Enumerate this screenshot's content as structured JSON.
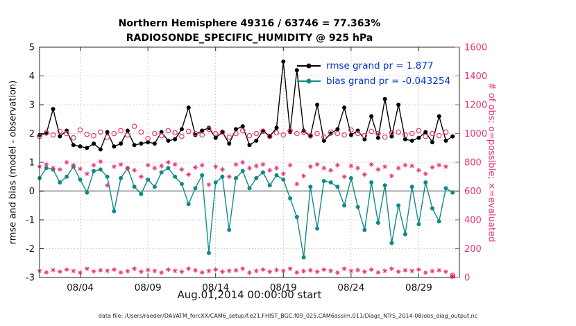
{
  "header": {
    "title_line1": "Northern Hemisphere 49316 / 63746 = 77.363%",
    "title_line2": "RADIOSONDE_SPECIFIC_HUMIDITY @ 925 hPa"
  },
  "axes": {
    "left_label": "rmse and bias (model - observation)",
    "right_label": "# of obs: o=possible; ×=evaluated",
    "x_label": "Aug.01,2014 00:00:00 start",
    "left_ticks": [
      5,
      4,
      3,
      2,
      1,
      0,
      -1,
      -2,
      -3
    ],
    "right_ticks": [
      1600,
      1400,
      1200,
      1000,
      800,
      600,
      400,
      200,
      0
    ],
    "x_ticks": [
      {
        "day": 4,
        "label": "08/04"
      },
      {
        "day": 9,
        "label": "08/09"
      },
      {
        "day": 14,
        "label": "08/14"
      },
      {
        "day": 19,
        "label": "08/19"
      },
      {
        "day": 24,
        "label": "08/24"
      },
      {
        "day": 29,
        "label": "08/29"
      }
    ]
  },
  "legend": {
    "items": [
      {
        "label": "rmse grand pr = 1.877",
        "color": "#000000"
      },
      {
        "label": "bias grand pr = -0.043254",
        "color": "#0f8a8a"
      }
    ],
    "text_color": "#0033cc"
  },
  "footer": {
    "caption": "data file: /Users/raeder/DAI/ATM_forcXX/CAM6_setup/f.e21.FHIST_BGC.f09_025.CAM6assim.011/Diags_NTrS_2014-08/obs_diag_output.nc"
  },
  "colors": {
    "pink": "#e83373",
    "teal": "#0f8a8a",
    "legend_blue": "#0033cc",
    "grid": "#b0b0b0",
    "zero_line": "#c9c9c9",
    "axis_box": "#262626"
  },
  "chart_data": {
    "type": "line",
    "title": "Northern Hemisphere 49316 / 63746 = 77.363% — RADIOSONDE_SPECIFIC_HUMIDITY @ 925 hPa",
    "xlabel": "Aug.01,2014 00:00:00 start",
    "ylabel_left": "rmse and bias (model - observation)",
    "ylabel_right": "# of obs: o=possible; ×=evaluated",
    "xlim": [
      1,
      32
    ],
    "left_ylim": [
      -3,
      5
    ],
    "right_ylim": [
      0,
      1600
    ],
    "grid": true,
    "rmse_grand_pr": 1.877,
    "bias_grand_pr": -0.043254,
    "x_days": [
      1,
      1.5,
      2,
      2.5,
      3,
      3.5,
      4,
      4.5,
      5,
      5.5,
      6,
      6.5,
      7,
      7.5,
      8,
      8.5,
      9,
      9.5,
      10,
      10.5,
      11,
      11.5,
      12,
      12.5,
      13,
      13.5,
      14,
      14.5,
      15,
      15.5,
      16,
      16.5,
      17,
      17.5,
      18,
      18.5,
      19,
      19.5,
      20,
      20.5,
      21,
      21.5,
      22,
      22.5,
      23,
      23.5,
      24,
      24.5,
      25,
      25.5,
      26,
      26.5,
      27,
      27.5,
      28,
      28.5,
      29,
      29.5,
      30,
      30.5,
      31,
      31.5
    ],
    "series": [
      {
        "name": "rmse",
        "axis": "left",
        "marker": "filled-circle",
        "line": true,
        "color": "#000000",
        "values": [
          1.95,
          2.0,
          2.85,
          1.9,
          2.1,
          1.6,
          1.55,
          1.5,
          1.65,
          1.45,
          2.05,
          1.55,
          1.65,
          2.1,
          1.6,
          1.65,
          1.7,
          1.65,
          2.05,
          1.75,
          1.8,
          2.15,
          2.9,
          1.95,
          2.1,
          2.2,
          1.85,
          2.05,
          1.65,
          2.15,
          2.25,
          1.6,
          1.75,
          2.1,
          1.9,
          2.2,
          4.5,
          2.05,
          4.2,
          2.1,
          1.9,
          3.0,
          1.75,
          2.0,
          2.15,
          2.9,
          1.95,
          2.1,
          1.8,
          2.6,
          1.85,
          3.2,
          1.9,
          3.0,
          1.8,
          1.75,
          1.85,
          2.05,
          1.7,
          2.6,
          1.75,
          1.9
        ]
      },
      {
        "name": "bias",
        "axis": "left",
        "marker": "filled-circle",
        "line": true,
        "color": "#0f8a8a",
        "values": [
          0.45,
          0.8,
          0.75,
          0.3,
          0.5,
          0.85,
          0.4,
          -0.05,
          0.7,
          0.75,
          0.5,
          -0.7,
          0.45,
          0.8,
          0.15,
          -0.1,
          0.4,
          0.15,
          0.65,
          0.8,
          0.5,
          0.25,
          -0.45,
          0.1,
          0.55,
          -2.15,
          0.3,
          0.5,
          -1.35,
          0.45,
          0.7,
          0.1,
          0.45,
          0.65,
          0.2,
          0.55,
          0.4,
          -0.25,
          -0.9,
          -2.3,
          0.15,
          -1.3,
          0.35,
          0.3,
          0.15,
          -0.5,
          0.45,
          -0.55,
          -1.35,
          0.3,
          -1.1,
          0.2,
          -1.8,
          -0.5,
          -1.5,
          0.15,
          -1.15,
          0.3,
          -0.6,
          -1.05,
          0.1,
          -0.05
        ]
      },
      {
        "name": "possible_obs",
        "axis": "right",
        "marker": "open-circle",
        "line": false,
        "color": "#e83373",
        "values": [
          980,
          1005,
          990,
          1015,
          1000,
          970,
          1025,
          995,
          985,
          1010,
          975,
          1000,
          1020,
          990,
          1050,
          1010,
          965,
          1000,
          985,
          1020,
          1005,
          980,
          1015,
          1000,
          990,
          1030,
          1000,
          1010,
          975,
          1000,
          1020,
          985,
          1000,
          1015,
          980,
          1005,
          990,
          1020,
          1000,
          1010,
          985,
          1000,
          975,
          1010,
          1000,
          990,
          1025,
          1000,
          985,
          1015,
          1000,
          975,
          1005,
          1010,
          990,
          1000,
          1020,
          980,
          1000,
          985,
          1010,
          15
        ]
      },
      {
        "name": "evaluated_obs",
        "axis": "right",
        "marker": "asterisk",
        "line": false,
        "color": "#e83373",
        "values": [
          770,
          785,
          760,
          750,
          800,
          780,
          755,
          720,
          780,
          805,
          640,
          770,
          785,
          755,
          745,
          700,
          780,
          760,
          775,
          800,
          785,
          750,
          715,
          765,
          780,
          645,
          770,
          750,
          700,
          785,
          800,
          760,
          775,
          785,
          745,
          760,
          720,
          780,
          650,
          705,
          770,
          785,
          760,
          745,
          780,
          700,
          775,
          760,
          715,
          785,
          750,
          770,
          705,
          760,
          780,
          775,
          745,
          720,
          765,
          780,
          770,
          10
        ]
      },
      {
        "name": "bottom_row_obs",
        "axis": "right",
        "marker": "asterisk",
        "line": false,
        "color": "#e83373",
        "values": [
          45,
          35,
          52,
          40,
          55,
          45,
          33,
          60,
          42,
          50,
          46,
          55,
          35,
          44,
          60,
          40,
          52,
          45,
          33,
          55,
          46,
          40,
          60,
          50,
          35,
          45,
          55,
          40,
          46,
          50,
          60,
          33,
          45,
          55,
          40,
          52,
          45,
          60,
          35,
          44,
          50,
          40,
          55,
          46,
          33,
          60,
          45,
          52,
          40,
          55,
          35,
          46,
          60,
          40,
          50,
          45,
          55,
          33,
          44,
          50,
          40,
          5
        ]
      }
    ]
  }
}
